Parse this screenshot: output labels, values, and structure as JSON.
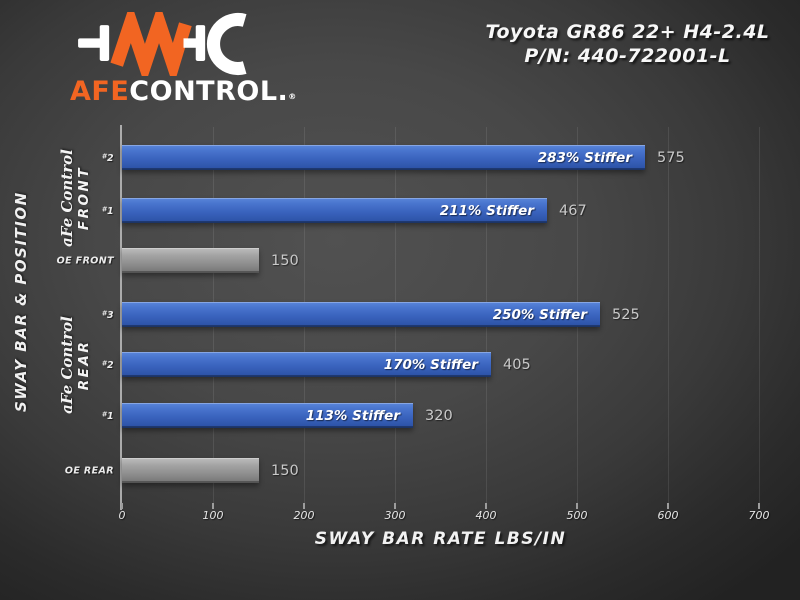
{
  "logo": {
    "brand_orange": "AFE",
    "brand_white": "CONTROL",
    "brand_period": ".",
    "registered": "®"
  },
  "header": {
    "title_line1": "Toyota GR86 22+ H4-2.4L",
    "title_line2": "P/N: 440-722001-L"
  },
  "chart_data": {
    "type": "bar",
    "orientation": "horizontal",
    "title": "",
    "xlabel": "SWAY BAR RATE LBS/IN",
    "ylabel": "SWAY BAR & POSITION",
    "xlim": [
      0,
      700
    ],
    "xticks": [
      0,
      100,
      200,
      300,
      400,
      500,
      600,
      700
    ],
    "grid": "vertical",
    "groups": [
      {
        "name_line1": "aFe Control",
        "name_line2": "FRONT"
      },
      {
        "name_line1": "aFe Control",
        "name_line2": "REAR"
      }
    ],
    "bars": [
      {
        "label": "#2",
        "value": 575,
        "annotation": "283% Stiffer",
        "series": "aFe Control Front",
        "color": "blue"
      },
      {
        "label": "#1",
        "value": 467,
        "annotation": "211% Stiffer",
        "series": "aFe Control Front",
        "color": "blue"
      },
      {
        "label": "OE FRONT",
        "value": 150,
        "annotation": "",
        "series": "OE",
        "color": "gray"
      },
      {
        "label": "#3",
        "value": 525,
        "annotation": "250% Stiffer",
        "series": "aFe Control Rear",
        "color": "blue"
      },
      {
        "label": "#2",
        "value": 405,
        "annotation": "170% Stiffer",
        "series": "aFe Control Rear",
        "color": "blue"
      },
      {
        "label": "#1",
        "value": 320,
        "annotation": "113% Stiffer",
        "series": "aFe Control Rear",
        "color": "blue"
      },
      {
        "label": "OE REAR",
        "value": 150,
        "annotation": "",
        "series": "OE",
        "color": "gray"
      }
    ]
  },
  "colors": {
    "bar_blue": "#3a63be",
    "bar_gray": "#8d8d8d",
    "accent_orange": "#f26522",
    "background_center": "#4d4d4d",
    "background_edge": "#222222",
    "value_text": "#c9c9c9"
  }
}
